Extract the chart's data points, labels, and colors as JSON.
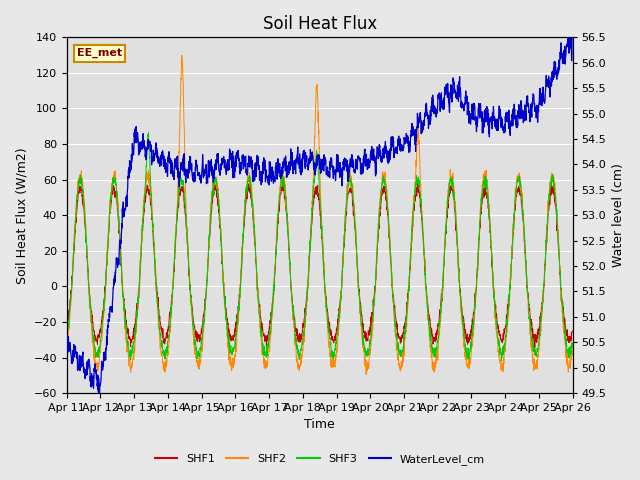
{
  "title": "Soil Heat Flux",
  "xlabel": "Time",
  "ylabel_left": "Soil Heat Flux (W/m2)",
  "ylabel_right": "Water level (cm)",
  "ylim_left": [
    -60,
    140
  ],
  "ylim_right": [
    49.5,
    56.5
  ],
  "yticks_left": [
    -60,
    -40,
    -20,
    0,
    20,
    40,
    60,
    80,
    100,
    120,
    140
  ],
  "yticks_right": [
    49.5,
    50.0,
    50.5,
    51.0,
    51.5,
    52.0,
    52.5,
    53.0,
    53.5,
    54.0,
    54.5,
    55.0,
    55.5,
    56.0,
    56.5
  ],
  "xtick_labels": [
    "Apr 11",
    "Apr 12",
    "Apr 13",
    "Apr 14",
    "Apr 15",
    "Apr 16",
    "Apr 17",
    "Apr 18",
    "Apr 19",
    "Apr 20",
    "Apr 21",
    "Apr 22",
    "Apr 23",
    "Apr 24",
    "Apr 25",
    "Apr 26"
  ],
  "shf1_color": "#cc0000",
  "shf2_color": "#ff8800",
  "shf3_color": "#00cc00",
  "water_color": "#0000cc",
  "fig_bg_color": "#e8e8e8",
  "plot_bg_color": "#e0e0e0",
  "watermark_text": "EE_met",
  "watermark_fg": "#800000",
  "watermark_bg": "#ffffcc",
  "watermark_border": "#cc8800",
  "legend_labels": [
    "SHF1",
    "SHF2",
    "SHF3",
    "WaterLevel_cm"
  ],
  "grid_color": "#ffffff",
  "title_fontsize": 12,
  "axis_fontsize": 9,
  "tick_fontsize": 8
}
